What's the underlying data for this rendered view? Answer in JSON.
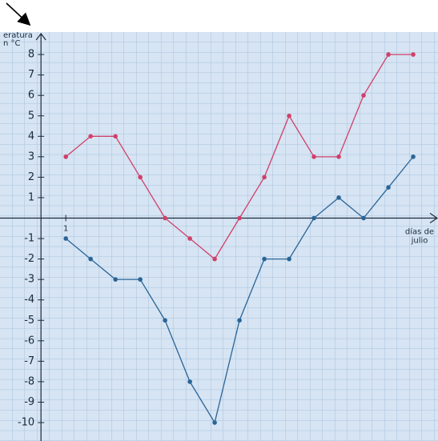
{
  "chart_data": {
    "type": "line",
    "ylabel_lines": [
      "eratura",
      "n °C"
    ],
    "xlabel_lines": [
      "días de",
      "julio"
    ],
    "x": [
      1,
      2,
      3,
      4,
      5,
      6,
      7,
      8,
      9,
      10,
      11,
      12,
      13,
      14,
      15
    ],
    "series": [
      {
        "color": "#d0406a",
        "values": [
          3,
          4,
          4,
          2,
          0,
          -1,
          -2,
          0,
          2,
          5,
          3,
          3,
          6,
          8,
          8
        ]
      },
      {
        "color": "#2a6496",
        "values": [
          -1,
          -2,
          -3,
          -3,
          -5,
          -8,
          -10,
          -5,
          -2,
          -2,
          0,
          1,
          0,
          1.5,
          3
        ]
      }
    ],
    "xlim": [
      -0.2,
      16
    ],
    "xticks": [
      1
    ],
    "ylim": [
      -10.9,
      9.1
    ],
    "yticks": [
      -10,
      -9,
      -8,
      -7,
      -6,
      -5,
      -4,
      -3,
      -2,
      -1,
      1,
      2,
      3,
      4,
      5,
      6,
      7,
      8
    ],
    "grid": true
  }
}
